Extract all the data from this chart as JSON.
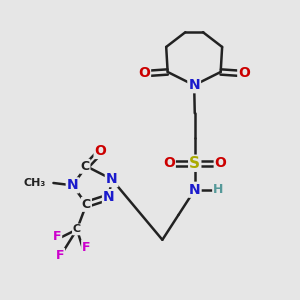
{
  "bg_color": "#e6e6e6",
  "bond_color": "#222222",
  "bond_width": 1.8,
  "atom_colors": {
    "C": "#222222",
    "N": "#1a1acc",
    "O": "#cc0000",
    "S": "#aaaa00",
    "F": "#cc00cc",
    "H": "#559999"
  },
  "fs": 10,
  "figsize": [
    3.0,
    3.0
  ],
  "dpi": 100
}
